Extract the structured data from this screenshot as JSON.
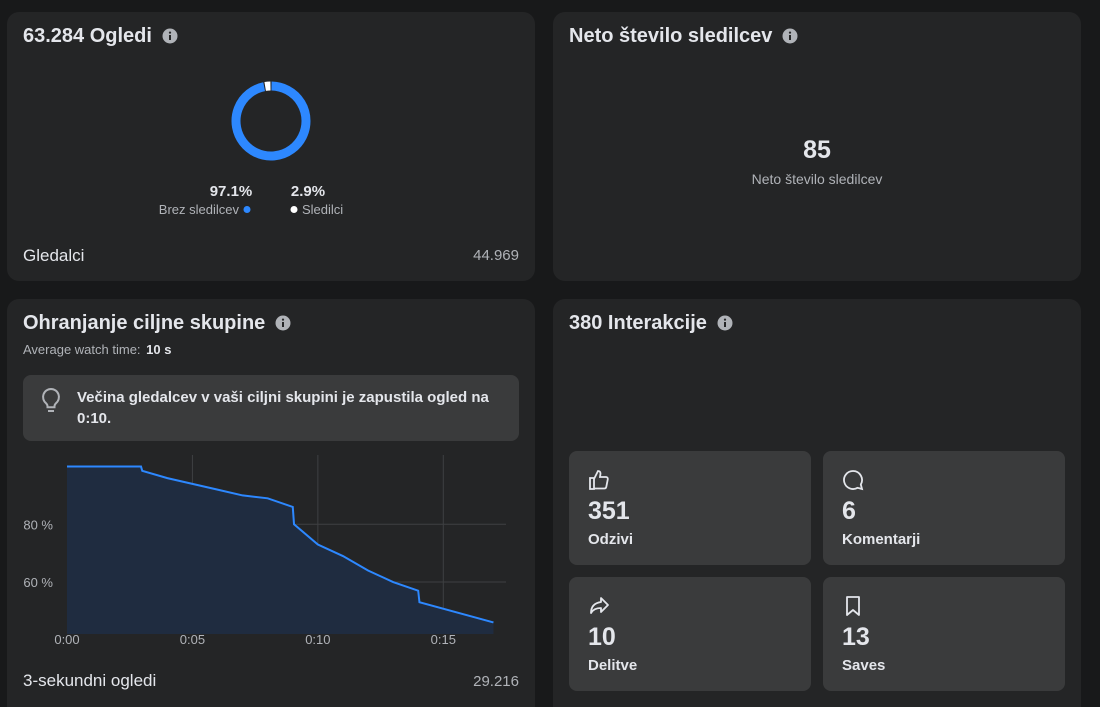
{
  "views": {
    "title": "63.284 Ogledi",
    "viewers_label": "Gledalci",
    "viewers_value": "44.969"
  },
  "followers": {
    "title": "Neto število sledilcev",
    "value": "85",
    "label": "Neto število sledilcev"
  },
  "retention": {
    "title": "Ohranjanje ciljne skupine",
    "avg_label": "Average watch time:",
    "avg_value": "10 s",
    "insight": "Večina gledalcev v vaši ciljni skupini je zapustila ogled na 0:10.",
    "footer_label": "3-sekundni ogledi",
    "footer_value": "29.216"
  },
  "interactions": {
    "title": "380 Interakcije",
    "tiles": [
      {
        "value": "351",
        "label": "Odzivi"
      },
      {
        "value": "6",
        "label": "Komentarji"
      },
      {
        "value": "10",
        "label": "Delitve"
      },
      {
        "value": "13",
        "label": "Saves"
      }
    ]
  },
  "chart_data": [
    {
      "type": "pie",
      "categories": [
        "Brez sledilcev",
        "Sledilci"
      ],
      "values": [
        97.1,
        2.9
      ],
      "value_labels": [
        "97.1%",
        "2.9%"
      ],
      "colors": [
        "#2d88ff",
        "#ffffff"
      ]
    },
    {
      "type": "line",
      "x": [
        0,
        2.95,
        3,
        4,
        6,
        7,
        8,
        9,
        9.05,
        10,
        11,
        12,
        13,
        14,
        14.05,
        17
      ],
      "values": [
        100,
        100,
        98.5,
        96,
        92,
        90,
        89,
        86,
        80,
        73,
        69,
        64,
        60,
        57,
        53,
        46
      ],
      "color": "#2d88ff",
      "area_color": "#1f2c40",
      "xlim": [
        0,
        17.5
      ],
      "ylim": [
        42,
        104
      ],
      "xticks": [
        {
          "value": 0,
          "label": "0:00"
        },
        {
          "value": 5,
          "label": "0:05"
        },
        {
          "value": 10,
          "label": "0:10"
        },
        {
          "value": 15,
          "label": "0:15"
        }
      ],
      "yticks": [
        {
          "value": 60,
          "label": "60 %"
        },
        {
          "value": 80,
          "label": "80 %"
        }
      ],
      "grid": true
    }
  ]
}
